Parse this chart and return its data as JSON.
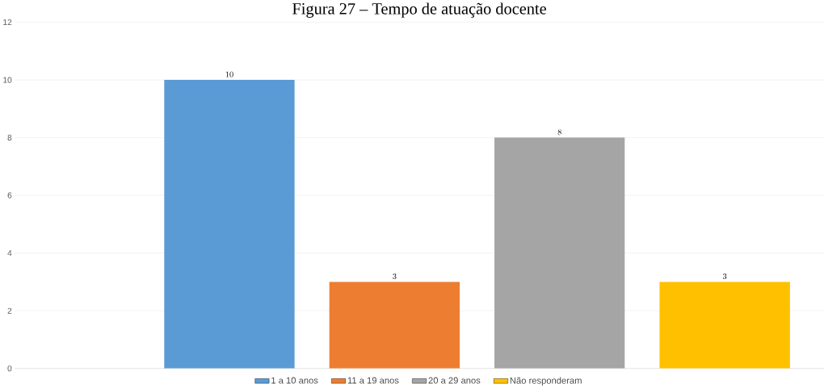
{
  "chart_data": {
    "type": "bar",
    "title": "Figura 27 – Tempo de atuação docente",
    "categories": [
      null
    ],
    "series": [
      {
        "name": "1 a 10 anos",
        "color": "#5b9bd5",
        "values": [
          10
        ]
      },
      {
        "name": "11 a 19 anos",
        "color": "#ed7d31",
        "values": [
          3
        ]
      },
      {
        "name": "20 a 29 anos",
        "color": "#a5a5a5",
        "values": [
          8
        ]
      },
      {
        "name": "Não responderam",
        "color": "#ffc000",
        "values": [
          3
        ]
      }
    ],
    "ylim": [
      0,
      12
    ],
    "yticks": [
      0,
      2,
      4,
      6,
      8,
      10,
      12
    ],
    "grid": "y",
    "legend": "bottom",
    "data_labels": true
  }
}
